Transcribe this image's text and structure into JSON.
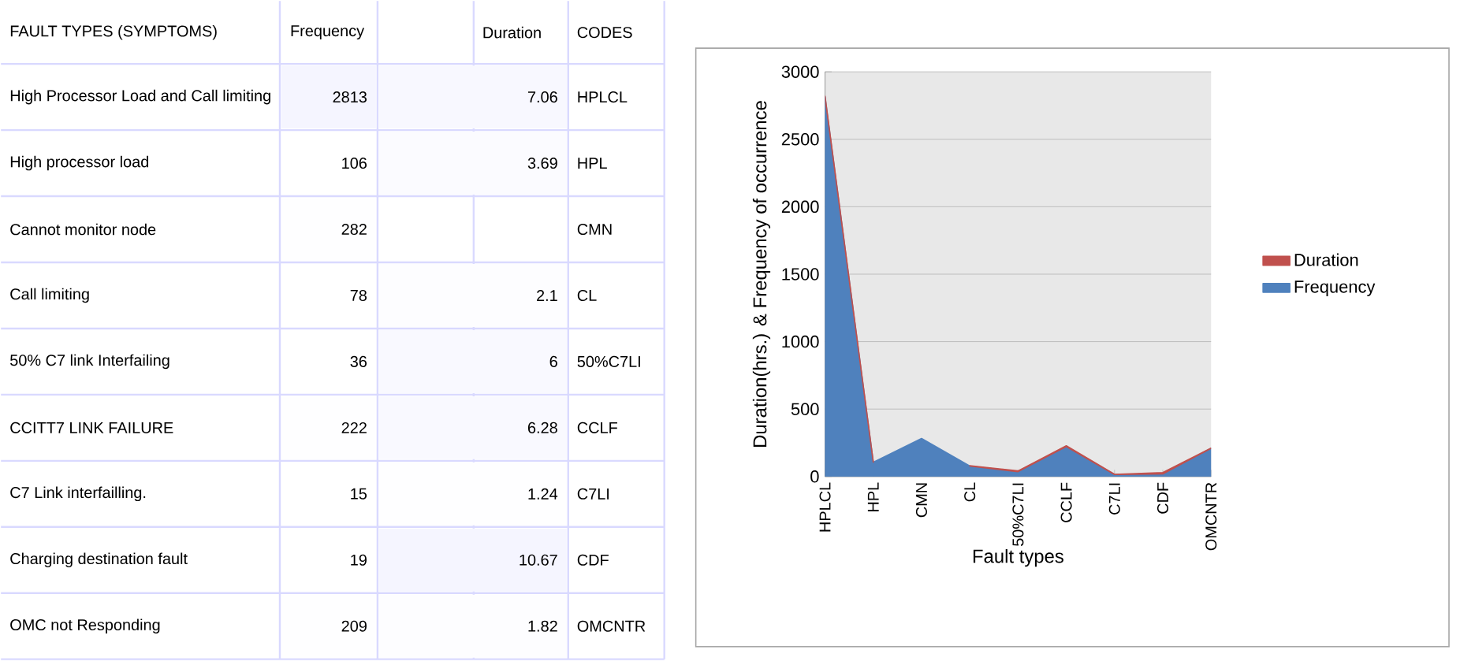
{
  "chart_data": [
    {
      "type": "heatmap",
      "ylabel": "FAULT TYPES (SYMPTOMS)",
      "y2label": "CODES",
      "categories": [
        "Frequency",
        "Duration"
      ],
      "y_categories": [
        "High Processor Load and Call limiting",
        "High processor load",
        "Cannot monitor node",
        "Call limiting",
        "50% C7 link Interfailing",
        "CCITT7 LINK FAILURE",
        "C7 Link interfailling.",
        "Charging destination fault",
        "OMC not Responding"
      ],
      "y2_categories": [
        "HPLCL",
        "HPL",
        "CMN",
        "CL",
        "50%C7LI",
        "CCLF",
        "C7LI",
        "CDF",
        "OMCNTR"
      ],
      "cells": [
        [
          2813,
          7.06
        ],
        [
          106,
          3.69
        ],
        [
          282,
          null
        ],
        [
          78,
          2.1
        ],
        [
          36,
          6
        ],
        [
          222,
          6.28
        ],
        [
          15,
          1.24
        ],
        [
          19,
          10.67
        ],
        [
          209,
          1.82
        ]
      ],
      "cell_labels": [
        [
          "2813",
          "7.06"
        ],
        [
          "106",
          "3.69"
        ],
        [
          "282",
          null
        ],
        [
          "78",
          "2.1"
        ],
        [
          "36",
          "6"
        ],
        [
          "222",
          "6.28"
        ],
        [
          "15",
          "1.24"
        ],
        [
          "19",
          "10.67"
        ],
        [
          "209",
          "1.82"
        ]
      ]
    },
    {
      "type": "area",
      "stacked": true,
      "xlabel": "Fault types",
      "ylabel": "Duration(hrs.) & Frequency of occurrence",
      "categories": [
        "HPLCL",
        "HPL",
        "CMN",
        "CL",
        "50%C7LI",
        "CCLF",
        "C7LI",
        "CDF",
        "OMCNTR"
      ],
      "series": [
        {
          "name": "Frequency",
          "color": "#4f81bd",
          "values": [
            2813,
            106,
            282,
            78,
            36,
            222,
            15,
            19,
            209
          ]
        },
        {
          "name": "Duration",
          "color": "#c0504d",
          "values": [
            7.06,
            3.69,
            null,
            2.1,
            6,
            6.28,
            1.24,
            10.67,
            1.82
          ]
        }
      ],
      "ylim": [
        0,
        3000
      ],
      "yticks": [
        0,
        500,
        1000,
        1500,
        2000,
        2500,
        3000
      ],
      "grid": "y",
      "legend": "right"
    }
  ]
}
